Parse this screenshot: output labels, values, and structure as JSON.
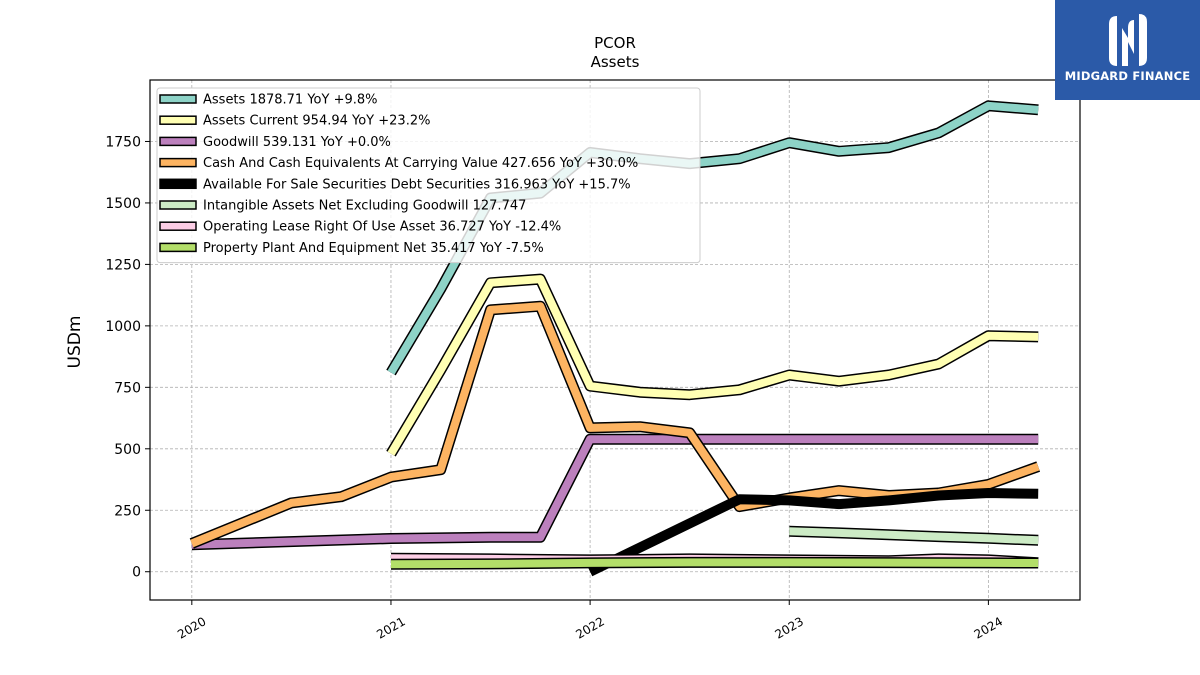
{
  "brand": {
    "name": "MIDGARD FINANCE",
    "accent": "#2b5aa8"
  },
  "chart_data": {
    "type": "line",
    "title": "PCOR",
    "subtitle": "Assets",
    "xlabel": "",
    "ylabel": "USDm",
    "xlim": [
      2019.79,
      2024.46
    ],
    "ylim": [
      -115,
      2000
    ],
    "x_ticks": [
      2020,
      2021,
      2022,
      2023,
      2024
    ],
    "y_ticks": [
      0,
      250,
      500,
      750,
      1000,
      1250,
      1500,
      1750
    ],
    "grid": true,
    "legend_position": "top-left",
    "series": [
      {
        "name": "Assets",
        "legend": "Assets  1878.71 YoY +9.8%",
        "color": "#8dd3c7",
        "width": 8,
        "x": [
          2021.0,
          2021.25,
          2021.5,
          2021.75,
          2022.0,
          2022.25,
          2022.5,
          2022.75,
          2023.0,
          2023.25,
          2023.5,
          2023.75,
          2024.0,
          2024.25
        ],
        "y": [
          810,
          1150,
          1520,
          1540,
          1705,
          1680,
          1660,
          1680,
          1745,
          1710,
          1725,
          1785,
          1895,
          1878.71
        ]
      },
      {
        "name": "Assets Current",
        "legend": "Assets Current  954.94 YoY +23.2%",
        "color": "#ffffb3",
        "width": 8,
        "x": [
          2021.0,
          2021.25,
          2021.5,
          2021.75,
          2022.0,
          2022.25,
          2022.5,
          2022.75,
          2023.0,
          2023.25,
          2023.5,
          2023.75,
          2024.0,
          2024.25
        ],
        "y": [
          480,
          820,
          1175,
          1190,
          755,
          730,
          720,
          740,
          800,
          775,
          800,
          845,
          960,
          954.94
        ]
      },
      {
        "name": "Goodwill",
        "legend": "Goodwill  539.131 YoY +0.0%",
        "color": "#bc80bd",
        "width": 8,
        "x": [
          2020.0,
          2021.0,
          2021.5,
          2021.75,
          2022.0,
          2022.25,
          2022.5,
          2022.75,
          2023.0,
          2023.25,
          2023.5,
          2023.75,
          2024.0,
          2024.25
        ],
        "y": [
          110,
          135,
          140,
          140,
          539,
          539,
          539,
          539,
          539,
          539,
          539,
          539,
          539.131,
          539.131
        ]
      },
      {
        "name": "Cash And Cash Equivalents At Carrying Value",
        "legend": "Cash And Cash Equivalents At Carrying Value  427.656 YoY +30.0%",
        "color": "#fdb462",
        "width": 8,
        "x": [
          2020.0,
          2020.5,
          2020.75,
          2021.0,
          2021.25,
          2021.5,
          2021.75,
          2022.0,
          2022.25,
          2022.5,
          2022.75,
          2023.0,
          2023.25,
          2023.5,
          2023.75,
          2024.0,
          2024.25
        ],
        "y": [
          115,
          280,
          305,
          385,
          415,
          1065,
          1080,
          585,
          590,
          565,
          265,
          300,
          330,
          310,
          320,
          355,
          427.656
        ]
      },
      {
        "name": "Available For Sale Securities Debt Securities",
        "legend": "Available For Sale Securities Debt Securities  316.963 YoY +15.7%",
        "color": "#000000",
        "width": 10,
        "x": [
          2022.0,
          2022.75,
          2023.0,
          2023.25,
          2023.5,
          2023.75,
          2024.0,
          2024.25
        ],
        "y": [
          0,
          295,
          290,
          275,
          290,
          310,
          320,
          316.963
        ]
      },
      {
        "name": "Intangible Assets Net Excluding Goodwill",
        "legend": "Intangible Assets Net Excluding Goodwill  127.747",
        "color": "#ccebc5",
        "width": 8,
        "x": [
          2023.0,
          2023.25,
          2023.5,
          2023.75,
          2024.0,
          2024.25
        ],
        "y": [
          165,
          158,
          150,
          143,
          136,
          127.747
        ]
      },
      {
        "name": "Operating Lease Right Of Use Asset",
        "legend": "Operating Lease Right Of Use Asset  36.727 YoY -12.4%",
        "color": "#fccde5",
        "width": 8,
        "x": [
          2021.0,
          2021.5,
          2022.0,
          2022.5,
          2023.0,
          2023.5,
          2023.75,
          2024.0,
          2024.25
        ],
        "y": [
          55,
          52,
          48,
          52,
          48,
          45,
          52,
          48,
          36.727
        ]
      },
      {
        "name": "Property Plant And Equipment Net",
        "legend": "Property Plant And Equipment Net  35.417 YoY -7.5%",
        "color": "#b3de69",
        "width": 8,
        "x": [
          2021.0,
          2021.5,
          2022.0,
          2022.5,
          2023.0,
          2023.5,
          2024.0,
          2024.25
        ],
        "y": [
          30,
          32,
          36,
          38,
          38,
          37,
          36,
          35.417
        ]
      }
    ]
  }
}
